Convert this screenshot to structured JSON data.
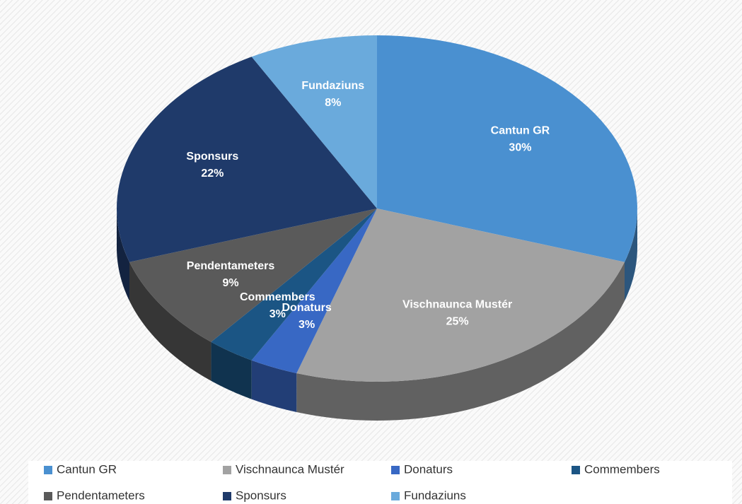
{
  "chart_data": {
    "type": "pie",
    "style": "3d",
    "categories": [
      "Cantun GR",
      "Vischnaunca Mustér",
      "Donaturs",
      "Commembers",
      "Pendentameters",
      "Sponsurs",
      "Fundaziuns"
    ],
    "values": [
      30,
      25,
      3,
      3,
      9,
      22,
      8
    ],
    "value_labels": [
      "30%",
      "25%",
      "3%",
      "3%",
      "9%",
      "22%",
      "8%"
    ],
    "colors": [
      "#4a90d0",
      "#a2a2a2",
      "#3868c4",
      "#1b5584",
      "#5a5a5a",
      "#1f3a6a",
      "#6aaadc"
    ],
    "legend": "bottom"
  }
}
